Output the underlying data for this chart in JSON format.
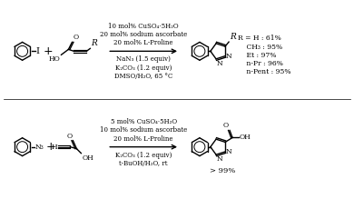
{
  "bg_color": "#ffffff",
  "reaction1": {
    "conditions_top": "10 mol% CuSO₄·5H₂O\n20 mol% sodium ascorbate\n20 mol% L-Proline",
    "conditions_bottom": "NaN₃ (1.5 equiv)\nK₂CO₃ (1.2 equiv)\nDMSO/H₂O, 65 °C",
    "yields": "R = H : 61%\n    CH₃ : 95%\n    Et : 97%\n    n-Pr : 96%\n    n-Pent : 95%"
  },
  "reaction2": {
    "conditions_top": "5 mol% CuSO₄·5H₂O\n10 mol% sodium ascorbate\n20 mol% L-Proline",
    "conditions_bottom": "K₂CO₃ (1.2 equiv)\nt-BuOH/H₂O, rt",
    "yields": "> 99%"
  },
  "lw": 1.0,
  "ring_r": 10,
  "tri_r": 9,
  "font_size": 6.0
}
